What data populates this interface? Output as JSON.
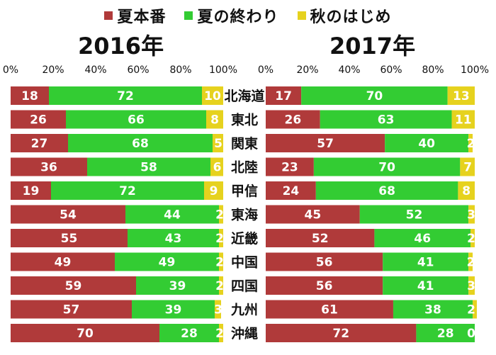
{
  "legend": [
    {
      "name": "夏本番",
      "color": "#b03a3a"
    },
    {
      "name": "夏の終わり",
      "color": "#33cc33"
    },
    {
      "name": "秋のはじめ",
      "color": "#e6d21e"
    }
  ],
  "chart_data": [
    {
      "type": "bar",
      "orientation": "horizontal",
      "stacked": true,
      "title": "2016年",
      "x_ticks": [
        "0%",
        "20%",
        "40%",
        "60%",
        "80%",
        "100%"
      ],
      "xlim": [
        0,
        100
      ],
      "categories": [
        "北海道",
        "東北",
        "関東",
        "北陸",
        "甲信",
        "東海",
        "近畿",
        "中国",
        "四国",
        "九州",
        "沖縄"
      ],
      "series": [
        {
          "name": "夏本番",
          "values": [
            18,
            26,
            27,
            36,
            19,
            54,
            55,
            49,
            59,
            57,
            70
          ]
        },
        {
          "name": "夏の終わり",
          "values": [
            72,
            66,
            68,
            58,
            72,
            44,
            43,
            49,
            39,
            39,
            28
          ]
        },
        {
          "name": "秋のはじめ",
          "values": [
            10,
            8,
            5,
            6,
            9,
            2,
            2,
            2,
            2,
            3,
            2
          ]
        }
      ]
    },
    {
      "type": "bar",
      "orientation": "horizontal",
      "stacked": true,
      "title": "2017年",
      "x_ticks": [
        "0%",
        "20%",
        "40%",
        "60%",
        "80%",
        "100%"
      ],
      "xlim": [
        0,
        100
      ],
      "categories": [
        "北海道",
        "東北",
        "関東",
        "北陸",
        "甲信",
        "東海",
        "近畿",
        "中国",
        "四国",
        "九州",
        "沖縄"
      ],
      "series": [
        {
          "name": "夏本番",
          "values": [
            17,
            26,
            57,
            23,
            24,
            45,
            52,
            56,
            56,
            61,
            72
          ]
        },
        {
          "name": "夏の終わり",
          "values": [
            70,
            63,
            40,
            70,
            68,
            52,
            46,
            41,
            41,
            38,
            28
          ]
        },
        {
          "name": "秋のはじめ",
          "values": [
            13,
            11,
            2,
            7,
            8,
            3,
            2,
            2,
            3,
            2,
            0
          ]
        }
      ]
    }
  ]
}
